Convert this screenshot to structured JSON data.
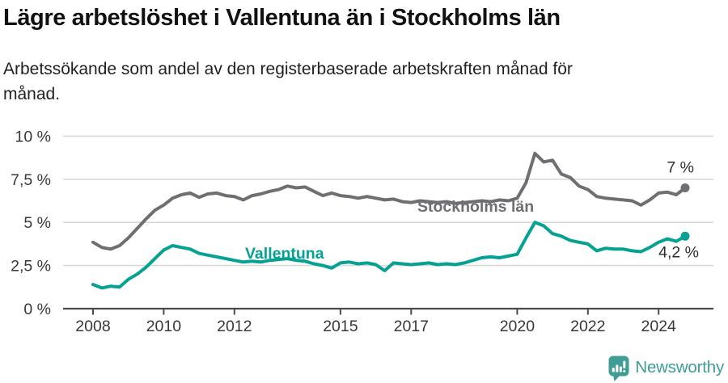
{
  "header": {
    "title": "Lägre arbetslöshet i Vallentuna än i Stockholms län",
    "subtitle_line1": "Arbetssökande som andel av den registerbaserade arbetskraften månad för",
    "subtitle_line2": "månad."
  },
  "chart_data": {
    "type": "line",
    "x_unit": "decimal_year_monthly_series",
    "ylim": [
      0,
      10
    ],
    "grid": true,
    "x": [
      2008,
      2008.25,
      2008.5,
      2008.75,
      2009,
      2009.25,
      2009.5,
      2009.75,
      2010,
      2010.25,
      2010.5,
      2010.75,
      2011,
      2011.25,
      2011.5,
      2011.75,
      2012,
      2012.25,
      2012.5,
      2012.75,
      2013,
      2013.25,
      2013.5,
      2013.75,
      2014,
      2014.25,
      2014.5,
      2014.75,
      2015,
      2015.25,
      2015.5,
      2015.75,
      2016,
      2016.25,
      2016.5,
      2016.75,
      2017,
      2017.25,
      2017.5,
      2017.75,
      2018,
      2018.25,
      2018.5,
      2018.75,
      2019,
      2019.25,
      2019.5,
      2019.75,
      2020,
      2020.25,
      2020.5,
      2020.75,
      2021,
      2021.25,
      2021.5,
      2021.75,
      2022,
      2022.25,
      2022.5,
      2022.75,
      2023,
      2023.25,
      2023.5,
      2023.75,
      2024,
      2024.25,
      2024.5,
      2024.75
    ],
    "series": [
      {
        "name": "Stockholms län",
        "color": "#6e6e73",
        "end_label": "7 %",
        "values": [
          3.85,
          3.55,
          3.45,
          3.65,
          4.1,
          4.65,
          5.2,
          5.7,
          6.0,
          6.4,
          6.6,
          6.7,
          6.45,
          6.65,
          6.7,
          6.55,
          6.5,
          6.3,
          6.55,
          6.65,
          6.8,
          6.9,
          7.1,
          7.0,
          7.05,
          6.8,
          6.55,
          6.7,
          6.55,
          6.5,
          6.4,
          6.5,
          6.4,
          6.3,
          6.35,
          6.2,
          6.15,
          6.25,
          6.2,
          6.15,
          6.2,
          6.1,
          6.15,
          6.2,
          6.25,
          6.2,
          6.3,
          6.25,
          6.4,
          7.3,
          9.0,
          8.5,
          8.6,
          7.8,
          7.6,
          7.1,
          6.9,
          6.5,
          6.4,
          6.35,
          6.3,
          6.25,
          6.0,
          6.3,
          6.7,
          6.75,
          6.6,
          7.0
        ]
      },
      {
        "name": "Vallentuna",
        "color": "#05a192",
        "end_label": "4,2 %",
        "values": [
          1.4,
          1.2,
          1.3,
          1.25,
          1.7,
          2.0,
          2.4,
          2.9,
          3.4,
          3.65,
          3.55,
          3.45,
          3.2,
          3.1,
          3.0,
          2.9,
          2.8,
          2.7,
          2.75,
          2.7,
          2.8,
          2.85,
          2.9,
          2.8,
          2.75,
          2.6,
          2.5,
          2.35,
          2.65,
          2.7,
          2.6,
          2.65,
          2.55,
          2.2,
          2.65,
          2.6,
          2.55,
          2.6,
          2.65,
          2.55,
          2.6,
          2.55,
          2.65,
          2.8,
          2.95,
          3.0,
          2.95,
          3.05,
          3.15,
          4.1,
          5.0,
          4.8,
          4.35,
          4.2,
          3.95,
          3.85,
          3.75,
          3.35,
          3.5,
          3.45,
          3.45,
          3.35,
          3.3,
          3.55,
          3.85,
          4.05,
          3.9,
          4.2
        ]
      }
    ],
    "yticks": [
      {
        "value": 0,
        "label": "0 %"
      },
      {
        "value": 2.5,
        "label": "2,5 %"
      },
      {
        "value": 5,
        "label": "5 %"
      },
      {
        "value": 7.5,
        "label": "7,5 %"
      },
      {
        "value": 10,
        "label": "10 %"
      }
    ],
    "xticks": [
      {
        "value": 2008,
        "label": "2008"
      },
      {
        "value": 2010,
        "label": "2010"
      },
      {
        "value": 2012,
        "label": "2012"
      },
      {
        "value": 2015,
        "label": "2015"
      },
      {
        "value": 2017,
        "label": "2017"
      },
      {
        "value": 2020,
        "label": "2020"
      },
      {
        "value": 2022,
        "label": "2022"
      },
      {
        "value": 2024,
        "label": "2024"
      }
    ],
    "colors": {
      "gridline": "#d9d9d9",
      "axis": "#4b4b4b",
      "tick_text": "#383838",
      "end_label_text": "#2e2e2e"
    }
  },
  "footer": {
    "brand": "Newsworthy",
    "brand_color": "#3f9d96"
  }
}
